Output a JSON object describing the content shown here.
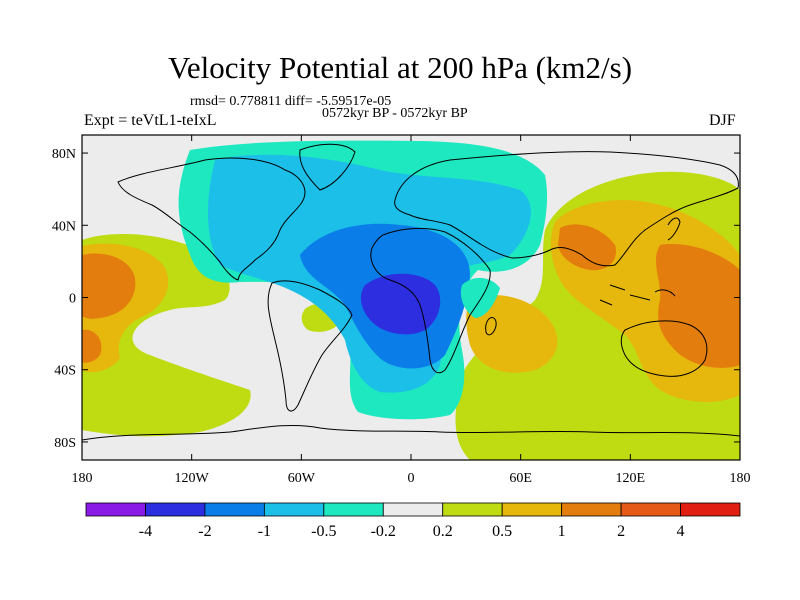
{
  "title": "Velocity Potential at 200 hPa (km2/s)",
  "stats": "rmsd= 0.778811  diff= -5.59517e-05",
  "periods": "0572kyr BP - 0572kyr BP",
  "experiment": "Expt = teVtL1-teIxL",
  "season": "DJF",
  "axes": {
    "x_ticks": [
      "180",
      "120W",
      "60W",
      "0",
      "60E",
      "120E",
      "180"
    ],
    "x_tick_lons": [
      -180,
      -120,
      -60,
      0,
      60,
      120,
      180
    ],
    "y_ticks": [
      "80N",
      "40N",
      "0",
      "40S",
      "80S"
    ],
    "y_tick_lats": [
      80,
      40,
      0,
      -40,
      -80
    ],
    "lon_range": [
      -180,
      180
    ],
    "lat_range": [
      -90,
      90
    ]
  },
  "colorbar": {
    "labels": [
      "-4",
      "-2",
      "-1",
      "-0.5",
      "-0.2",
      "0.2",
      "0.5",
      "1",
      "2",
      "4"
    ],
    "colors": [
      "#8a1be6",
      "#2c2ee0",
      "#0a7de8",
      "#1cbfe8",
      "#1de8c0",
      "#ececec",
      "#bfdc12",
      "#e6b70c",
      "#e37d0d",
      "#e65a18",
      "#e01e12"
    ]
  },
  "chart_data": {
    "type": "heatmap",
    "title": "Velocity Potential at 200 hPa (km2/s)",
    "levels": [
      -4,
      -2,
      -1,
      -0.5,
      -0.2,
      0.2,
      0.5,
      1,
      2,
      4
    ],
    "xlabel": "",
    "ylabel": "",
    "xlim": [
      -180,
      180
    ],
    "ylim": [
      -90,
      90
    ],
    "anomalies": [
      {
        "lon": -15,
        "lat": -5,
        "peak": -2.5,
        "desc": "minimum over tropical Atlantic"
      },
      {
        "lon": 150,
        "lat": -5,
        "peak": 1.6,
        "desc": "maximum over maritime continent"
      },
      {
        "lon": -175,
        "lat": 5,
        "peak": 1.2,
        "desc": "maximum central Pacific"
      },
      {
        "lon": 75,
        "lat": -20,
        "peak": 1.0,
        "desc": "maximum Indian Ocean"
      }
    ]
  }
}
